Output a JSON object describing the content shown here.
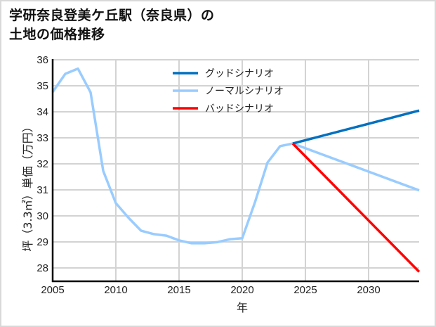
{
  "title": {
    "line1": "学研奈良登美ケ丘駅（奈良県）の",
    "line2": "土地の価格推移"
  },
  "colors": {
    "good": "#0070c0",
    "normal": "#99ccff",
    "bad": "#ff0000",
    "grid": "#d3d3d3",
    "axis": "#000000",
    "frame_border": "#d9d9d9"
  },
  "chart_data": {
    "type": "line",
    "title": "学研奈良登美ケ丘駅（奈良県）の土地の価格推移",
    "xlabel": "年",
    "ylabel": "坪（3.3㎡）単価（万円）",
    "xlim": [
      2005,
      2034
    ],
    "ylim": [
      27.5,
      36.0
    ],
    "xticks": [
      2005,
      2010,
      2015,
      2020,
      2025,
      2030
    ],
    "yticks": [
      28,
      29,
      30,
      31,
      32,
      33,
      34,
      35,
      36
    ],
    "grid": true,
    "legend_position": "upper center",
    "series": [
      {
        "name": "グッドシナリオ",
        "color": "#0070c0",
        "x": [
          2024,
          2034
        ],
        "y": [
          32.78,
          34.05
        ]
      },
      {
        "name": "ノーマルシナリオ",
        "color": "#99ccff",
        "x": [
          2005,
          2006,
          2007,
          2008,
          2009,
          2010,
          2011,
          2012,
          2013,
          2014,
          2015,
          2016,
          2017,
          2018,
          2019,
          2020,
          2021,
          2022,
          2023,
          2024,
          2034
        ],
        "y": [
          34.76,
          35.46,
          35.66,
          34.75,
          31.73,
          30.49,
          29.93,
          29.43,
          29.3,
          29.24,
          29.06,
          28.95,
          28.95,
          28.99,
          29.1,
          29.14,
          30.51,
          32.05,
          32.68,
          32.78,
          30.98
        ]
      },
      {
        "name": "バッドシナリオ",
        "color": "#ff0000",
        "x": [
          2024,
          2034
        ],
        "y": [
          32.78,
          27.85
        ]
      }
    ]
  }
}
